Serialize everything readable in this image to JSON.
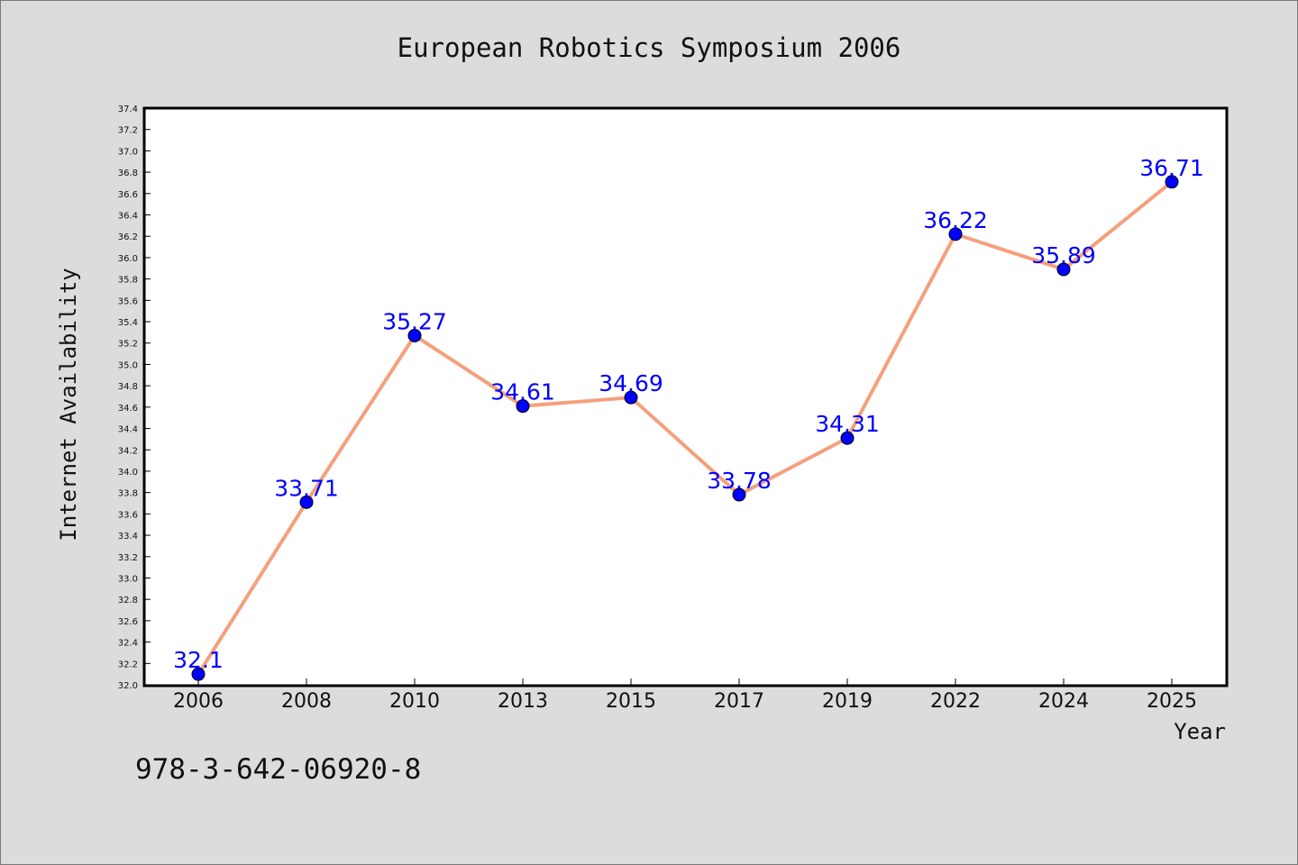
{
  "chart_data": {
    "type": "line",
    "title": "European Robotics Symposium 2006",
    "xlabel": "Year",
    "ylabel": "Internet Availability",
    "categories": [
      "2006",
      "2008",
      "2010",
      "2013",
      "2015",
      "2017",
      "2019",
      "2022",
      "2024",
      "2025"
    ],
    "series": [
      {
        "values": [
          32.1,
          33.71,
          35.27,
          34.61,
          34.69,
          33.78,
          34.31,
          36.22,
          35.89,
          36.71
        ],
        "data_labels": [
          "32.1",
          "33.71",
          "35.27",
          "34.61",
          "34.69",
          "33.78",
          "34.31",
          "36.22",
          "35.89",
          "36.71"
        ],
        "line_color": "#f4a07c",
        "marker_color": "#0000ff"
      }
    ],
    "ylim": [
      32.0,
      37.4
    ],
    "y_ticks": [
      "32.0",
      "32.2",
      "32.4",
      "32.6",
      "32.8",
      "33.0",
      "33.2",
      "33.4",
      "33.6",
      "33.8",
      "34.0",
      "34.2",
      "34.4",
      "34.6",
      "34.8",
      "35.0",
      "35.2",
      "35.4",
      "35.6",
      "35.8",
      "36.0",
      "36.2",
      "36.4",
      "36.6",
      "36.8",
      "37.0",
      "37.2",
      "37.4"
    ],
    "grid": false,
    "legend": "none"
  },
  "footer": {
    "isbn": "978-3-642-06920-8"
  },
  "colors": {
    "background": "#dcdcdc",
    "plot_background": "#ffffff",
    "line": "#f4a07c",
    "marker": "#0000ff",
    "label": "#0000ff"
  }
}
